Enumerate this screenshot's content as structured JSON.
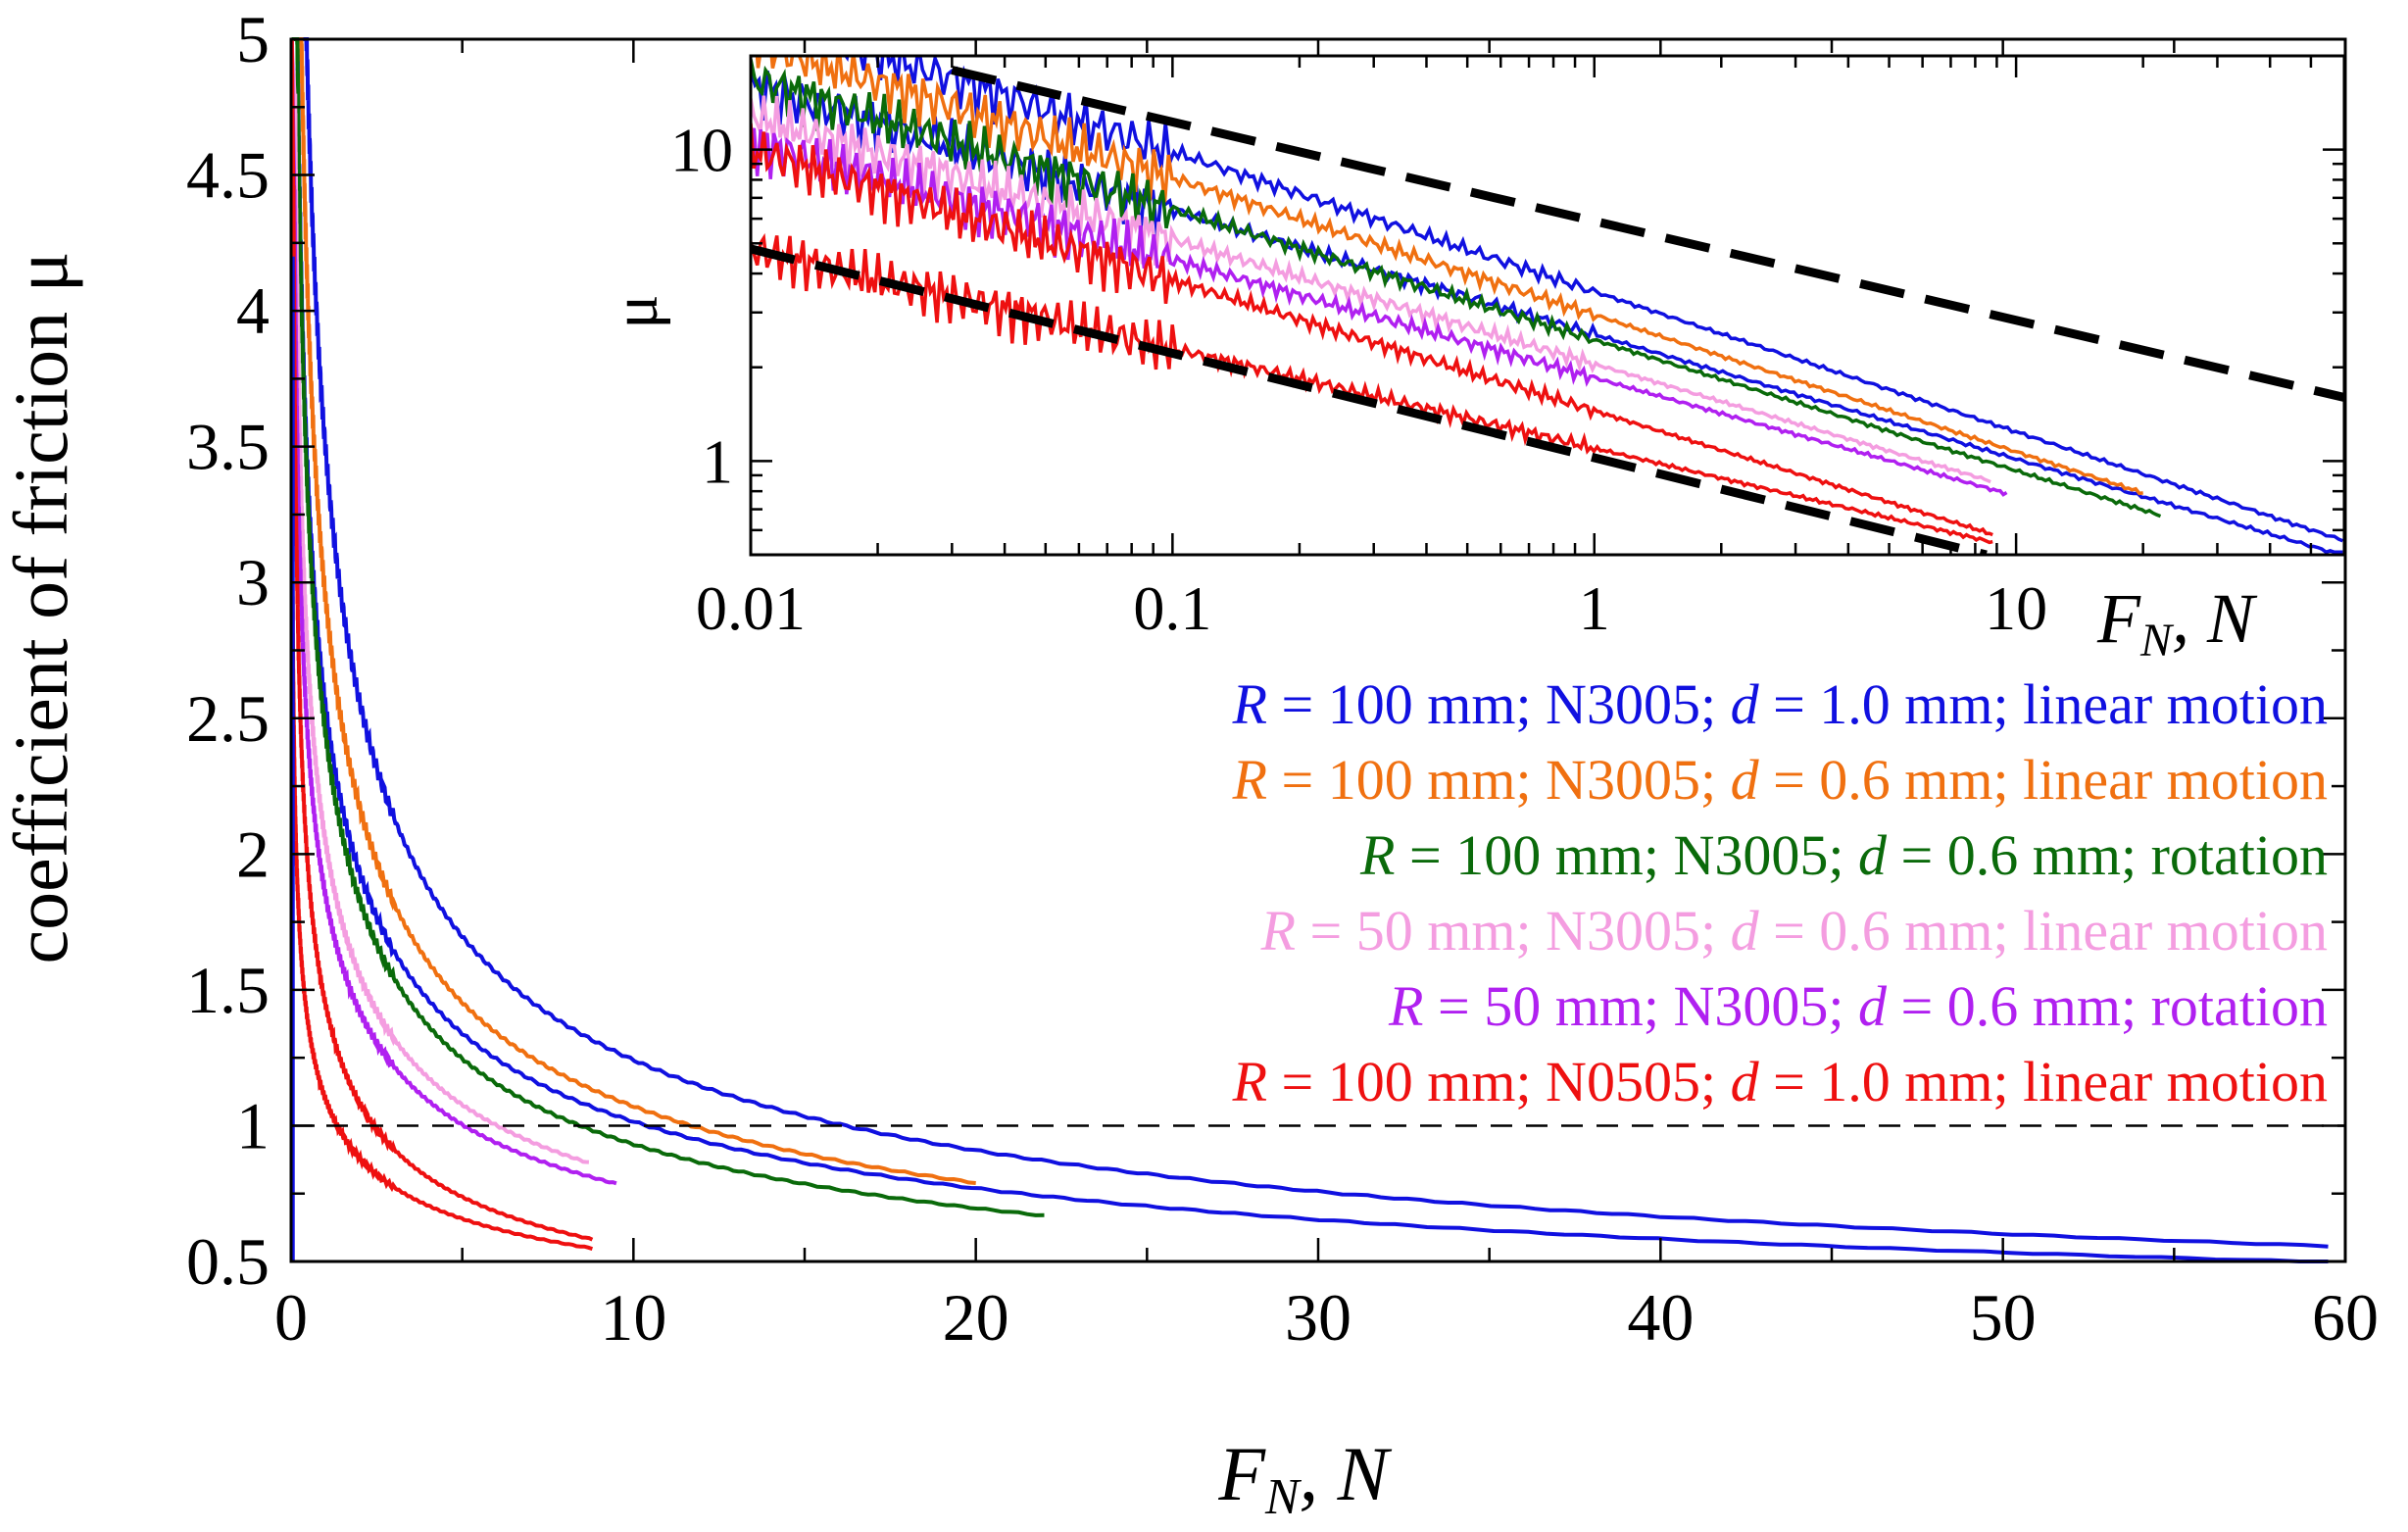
{
  "chart_data": [
    {
      "type": "line",
      "title": "",
      "xlabel": {
        "main": "F",
        "sub": "N",
        "rest": ", N"
      },
      "ylabel": "coefficient of friction μ",
      "xlim": [
        0,
        60
      ],
      "ylim": [
        0.5,
        5
      ],
      "xticks": [
        "0",
        "10",
        "20",
        "30",
        "40",
        "50",
        "60"
      ],
      "yticks": [
        "0.5",
        "1",
        "1.5",
        "2",
        "2.5",
        "3",
        "3.5",
        "4",
        "4.5",
        "5"
      ],
      "reference_line": {
        "y": 1,
        "style": "dashed"
      },
      "series": [
        {
          "name": "blue",
          "color": "#1010e0",
          "dataset": "R = 100 mm; N3005; d = 1.0 mm; linear motion",
          "k": 3.5,
          "n": 0.45,
          "xmax": 59.5,
          "xmin": 0.38
        },
        {
          "name": "blue-2",
          "color": "#1010e0",
          "dataset": "R = 100 mm; N3005; d = 1.0 mm; linear motion",
          "k": 2.55,
          "n": 0.4,
          "xmax": 59.5,
          "xmin": 0.15
        },
        {
          "name": "orange",
          "color": "#f07010",
          "dataset": "R = 100 mm; N3005; d = 0.6 mm; linear motion",
          "k": 2.95,
          "n": 0.44,
          "xmax": 20,
          "xmin": 0.2
        },
        {
          "name": "green",
          "color": "#0a6a0a",
          "dataset": "R = 100 mm; N3005; d = 0.6 mm; rotation",
          "k": 2.45,
          "n": 0.42,
          "xmax": 22,
          "xmin": 0.17
        },
        {
          "name": "pink",
          "color": "#f49de0",
          "dataset": "R = 50 mm; N3005; d = 0.6 mm; linear motion",
          "k": 2.05,
          "n": 0.4,
          "xmax": 8.7,
          "xmin": 0.12
        },
        {
          "name": "purple",
          "color": "#b020f0",
          "dataset": "R = 50 mm; N3005; d = 0.6 mm; rotation",
          "k": 1.85,
          "n": 0.38,
          "xmax": 9.5,
          "xmin": 0.1
        },
        {
          "name": "red-1",
          "color": "#ee1010",
          "dataset": "R = 100 mm; N0505; d = 1.0 mm; linear motion",
          "k": 1.45,
          "n": 0.42,
          "xmax": 8.8,
          "xmin": 0.07
        },
        {
          "name": "red-2",
          "color": "#ee1010",
          "dataset": "R = 100 mm; N0505; d = 1.0 mm; linear motion",
          "k": 1.1,
          "n": 0.32,
          "xmax": 8.8,
          "xmin": 0.03
        }
      ]
    },
    {
      "type": "line",
      "subtype": "log-log inset",
      "xlabel": {
        "main": "F",
        "sub": "N",
        "rest": ", N"
      },
      "ylabel": "μ",
      "xlim": [
        0.01,
        60
      ],
      "ylim": [
        0.5,
        20
      ],
      "xscale": "log",
      "yscale": "log",
      "xticks": [
        "0.01",
        "0.1",
        "1",
        "10"
      ],
      "yticks": [
        "1",
        "10"
      ],
      "guide_lines": [
        {
          "style": "dashed",
          "x": [
            0.03,
            60
          ],
          "y": [
            18,
            1.6
          ]
        },
        {
          "style": "dashed",
          "x": [
            0.01,
            8.5
          ],
          "y": [
            4.8,
            0.5
          ]
        }
      ]
    }
  ],
  "legend": {
    "placement": "right, below inset",
    "entries": [
      {
        "color": "#1010e0",
        "R": "R",
        "p1": " = 100 mm; N3005; ",
        "d": "d",
        "p2": " = 1.0 mm; linear motion"
      },
      {
        "color": "#f07010",
        "R": "R",
        "p1": " = 100 mm; N3005; ",
        "d": "d",
        "p2": " = 0.6 mm; linear motion"
      },
      {
        "color": "#0a6a0a",
        "R": "R",
        "p1": " = 100 mm; N3005; ",
        "d": "d",
        "p2": " = 0.6 mm; rotation"
      },
      {
        "color": "#f49de0",
        "R": "R",
        "p1": " = 50 mm; N3005; ",
        "d": "d",
        "p2": " = 0.6 mm; linear motion"
      },
      {
        "color": "#b020f0",
        "R": "R",
        "p1": " = 50 mm; N3005; ",
        "d": "d",
        "p2": " = 0.6 mm; rotation"
      },
      {
        "color": "#ee1010",
        "R": "R",
        "p1": " = 100 mm; N0505; ",
        "d": "d",
        "p2": " = 1.0 mm; linear motion"
      }
    ]
  }
}
